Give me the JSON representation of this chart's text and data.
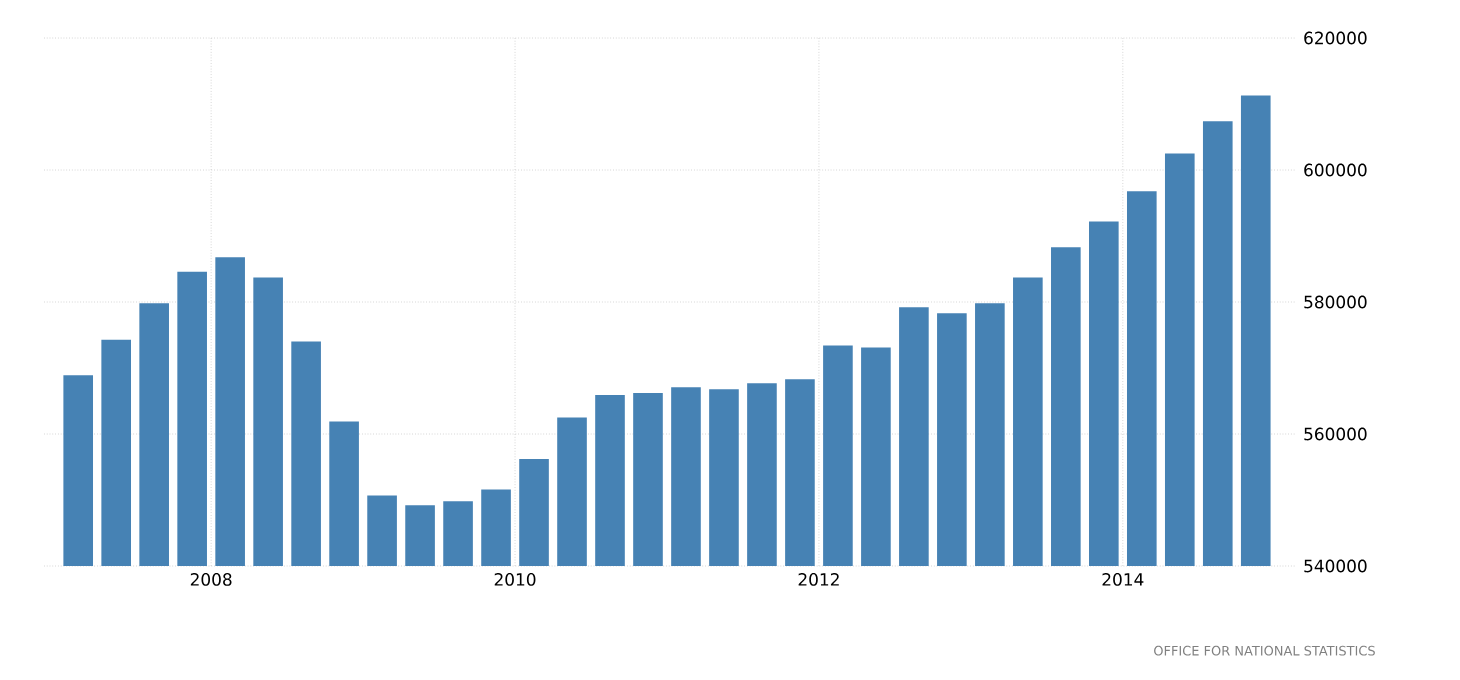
{
  "chart_data": {
    "type": "bar",
    "x": [
      2007.125,
      2007.375,
      2007.625,
      2007.875,
      2008.125,
      2008.375,
      2008.625,
      2008.875,
      2009.125,
      2009.375,
      2009.625,
      2009.875,
      2010.125,
      2010.375,
      2010.625,
      2010.875,
      2011.125,
      2011.375,
      2011.625,
      2011.875,
      2012.125,
      2012.375,
      2012.625,
      2012.875,
      2013.125,
      2013.375,
      2013.625,
      2013.875,
      2014.125,
      2014.375,
      2014.625,
      2014.875
    ],
    "values": [
      568900,
      574300,
      579800,
      584600,
      586800,
      583700,
      574000,
      561900,
      550700,
      549200,
      549800,
      551600,
      556200,
      562500,
      565900,
      566200,
      567100,
      566800,
      567700,
      568300,
      573400,
      573100,
      579200,
      578300,
      579800,
      583700,
      588300,
      592200,
      596800,
      602500,
      607400,
      611300
    ],
    "color": "#4682b4",
    "xlim": [
      2006.9,
      2015.14
    ],
    "xticks": [
      2008,
      2010,
      2012,
      2014
    ],
    "ylim": [
      540000,
      620000
    ],
    "yticks": [
      540000,
      560000,
      580000,
      600000,
      620000
    ],
    "grid": true,
    "annotations": [
      "OFFICE FOR NATIONAL STATISTICS"
    ]
  }
}
